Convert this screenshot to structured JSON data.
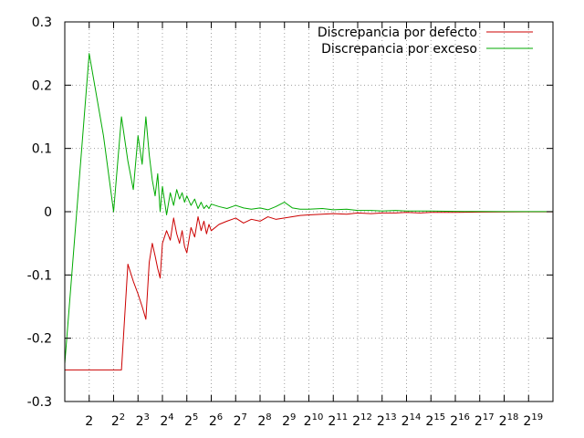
{
  "chart_data": {
    "type": "line",
    "x_scale": "log2",
    "xlim": [
      1,
      1048576
    ],
    "ylim": [
      -0.3,
      0.3
    ],
    "grid": true,
    "legend": "top-right",
    "x_tick_labels": [
      {
        "x": 2,
        "base": "2",
        "exp": ""
      },
      {
        "x": 4,
        "base": "2",
        "exp": "2"
      },
      {
        "x": 8,
        "base": "2",
        "exp": "3"
      },
      {
        "x": 16,
        "base": "2",
        "exp": "4"
      },
      {
        "x": 32,
        "base": "2",
        "exp": "5"
      },
      {
        "x": 64,
        "base": "2",
        "exp": "6"
      },
      {
        "x": 128,
        "base": "2",
        "exp": "7"
      },
      {
        "x": 256,
        "base": "2",
        "exp": "8"
      },
      {
        "x": 512,
        "base": "2",
        "exp": "9"
      },
      {
        "x": 1024,
        "base": "2",
        "exp": "10"
      },
      {
        "x": 2048,
        "base": "2",
        "exp": "11"
      },
      {
        "x": 4096,
        "base": "2",
        "exp": "12"
      },
      {
        "x": 8192,
        "base": "2",
        "exp": "13"
      },
      {
        "x": 16384,
        "base": "2",
        "exp": "14"
      },
      {
        "x": 32768,
        "base": "2",
        "exp": "15"
      },
      {
        "x": 65536,
        "base": "2",
        "exp": "16"
      },
      {
        "x": 131072,
        "base": "2",
        "exp": "17"
      },
      {
        "x": 262144,
        "base": "2",
        "exp": "18"
      },
      {
        "x": 524288,
        "base": "2",
        "exp": "19"
      }
    ],
    "y_tick_labels": [
      {
        "y": 0.3,
        "label": "0.3"
      },
      {
        "y": 0.2,
        "label": "0.2"
      },
      {
        "y": 0.1,
        "label": "0.1"
      },
      {
        "y": 0.0,
        "label": "0"
      },
      {
        "y": -0.1,
        "label": "-0.1"
      },
      {
        "y": -0.2,
        "label": "-0.2"
      },
      {
        "y": -0.3,
        "label": "-0.3"
      }
    ],
    "series": [
      {
        "name": "Discrepancia por defecto",
        "color": "#cc0000",
        "x": [
          1,
          2,
          3,
          4,
          5,
          6,
          7,
          8,
          9,
          10,
          11,
          12,
          13,
          14,
          15,
          16,
          18,
          20,
          22,
          24,
          26,
          28,
          30,
          32,
          36,
          40,
          44,
          48,
          52,
          56,
          60,
          64,
          80,
          100,
          128,
          160,
          200,
          256,
          320,
          400,
          512,
          640,
          800,
          1024,
          1500,
          2048,
          3000,
          4096,
          6000,
          8192,
          12000,
          16384,
          24000,
          32768,
          50000,
          65536,
          131072,
          262144,
          524288,
          1048576
        ],
        "y": [
          -0.25,
          -0.25,
          -0.25,
          -0.25,
          -0.25,
          -0.083,
          -0.11,
          -0.13,
          -0.15,
          -0.17,
          -0.08,
          -0.05,
          -0.07,
          -0.09,
          -0.105,
          -0.05,
          -0.03,
          -0.045,
          -0.01,
          -0.035,
          -0.05,
          -0.03,
          -0.055,
          -0.065,
          -0.025,
          -0.04,
          -0.008,
          -0.03,
          -0.015,
          -0.035,
          -0.02,
          -0.03,
          -0.02,
          -0.015,
          -0.01,
          -0.018,
          -0.012,
          -0.015,
          -0.008,
          -0.012,
          -0.01,
          -0.008,
          -0.006,
          -0.005,
          -0.004,
          -0.003,
          -0.004,
          -0.002,
          -0.003,
          -0.002,
          -0.002,
          -0.001,
          -0.002,
          -0.001,
          -0.001,
          -0.001,
          -0.0005,
          -0.0004,
          -0.0002,
          -0.0001
        ]
      },
      {
        "name": "Discrepancia por exceso",
        "color": "#00aa00",
        "x": [
          1,
          2,
          3,
          4,
          5,
          6,
          7,
          8,
          9,
          10,
          11,
          12,
          13,
          14,
          15,
          16,
          18,
          20,
          22,
          24,
          26,
          28,
          30,
          32,
          36,
          40,
          44,
          48,
          52,
          56,
          60,
          64,
          80,
          100,
          128,
          160,
          200,
          256,
          320,
          400,
          512,
          640,
          800,
          1024,
          1500,
          2048,
          3000,
          4096,
          6000,
          8192,
          12000,
          16384,
          24000,
          32768,
          50000,
          65536,
          131072,
          262144,
          524288,
          1048576
        ],
        "y": [
          -0.24,
          0.25,
          0.12,
          0.0,
          0.15,
          0.08,
          0.035,
          0.12,
          0.075,
          0.15,
          0.09,
          0.05,
          0.025,
          0.06,
          0.0,
          0.04,
          -0.005,
          0.03,
          0.01,
          0.035,
          0.02,
          0.03,
          0.015,
          0.025,
          0.01,
          0.02,
          0.005,
          0.015,
          0.005,
          0.01,
          0.005,
          0.012,
          0.008,
          0.005,
          0.01,
          0.006,
          0.004,
          0.006,
          0.003,
          0.008,
          0.015,
          0.006,
          0.004,
          0.004,
          0.005,
          0.003,
          0.004,
          0.002,
          0.002,
          0.001,
          0.002,
          0.001,
          0.001,
          0.001,
          0.0008,
          0.0005,
          0.0003,
          0.0002,
          0.0001,
          0.0001
        ]
      }
    ]
  }
}
